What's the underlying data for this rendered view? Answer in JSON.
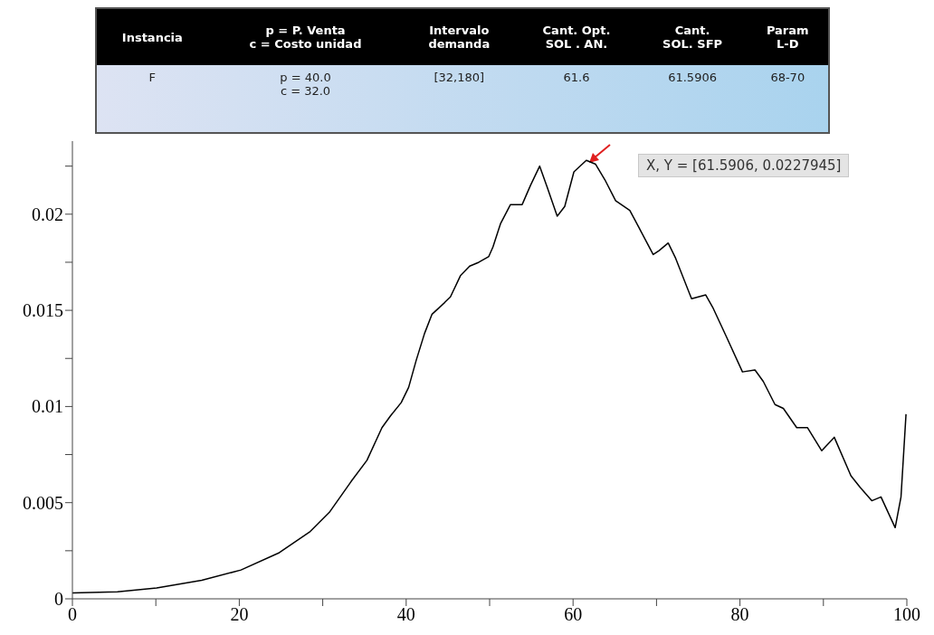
{
  "chart_data": {
    "type": "line",
    "x": [
      0,
      5.4,
      10.1,
      15.5,
      20.2,
      24.8,
      28.5,
      30.8,
      33.4,
      35.3,
      37.1,
      38.1,
      39.4,
      40.3,
      41.2,
      42.2,
      43.1,
      44.6,
      45.3,
      46.5,
      47.6,
      48.7,
      49.9,
      50.4,
      51.3,
      52.5,
      53.9,
      54.9,
      56.0,
      56.9,
      58.1,
      59.0,
      60.1,
      61.59,
      62.7,
      63.8,
      65.1,
      66.8,
      67.9,
      69.6,
      70.3,
      71.4,
      72.3,
      74.2,
      75.9,
      76.8,
      78.3,
      80.3,
      81.8,
      82.8,
      84.2,
      85.2,
      86.8,
      88.1,
      89.8,
      91.3,
      93.3,
      94.4,
      95.8,
      96.9,
      98.6,
      99.3,
      99.9
    ],
    "series": [
      {
        "color": "#000000",
        "values": [
          0.0003,
          0.00037,
          0.00056,
          0.00096,
          0.0015,
          0.0024,
          0.0035,
          0.0045,
          0.0061,
          0.0072,
          0.0089,
          0.0095,
          0.0102,
          0.011,
          0.0124,
          0.0138,
          0.0148,
          0.0154,
          0.0157,
          0.0168,
          0.0173,
          0.0175,
          0.0178,
          0.0183,
          0.0195,
          0.0205,
          0.0205,
          0.0215,
          0.0225,
          0.0214,
          0.0199,
          0.0204,
          0.0222,
          0.0228,
          0.0226,
          0.0218,
          0.0207,
          0.0202,
          0.0193,
          0.0179,
          0.0181,
          0.0185,
          0.0177,
          0.0156,
          0.0158,
          0.0151,
          0.0137,
          0.0118,
          0.0119,
          0.0113,
          0.0101,
          0.0099,
          0.0089,
          0.0089,
          0.0077,
          0.0084,
          0.0064,
          0.0058,
          0.0051,
          0.0053,
          0.0037,
          0.0053,
          0.0096
        ]
      }
    ],
    "xlim": [
      0,
      100
    ],
    "xticks": [
      0,
      {
        "value": 10,
        "label": null
      },
      20,
      {
        "value": 30,
        "label": null
      },
      40,
      {
        "value": 50,
        "label": null
      },
      60,
      {
        "value": 70,
        "label": null
      },
      80,
      {
        "value": 90,
        "label": null
      },
      100
    ],
    "ylim": [
      0,
      0.0238
    ],
    "yticks": [
      0,
      {
        "value": 0.0025,
        "label": null
      },
      0.005,
      {
        "value": 0.0075,
        "label": null
      },
      0.01,
      {
        "value": 0.0125,
        "label": null
      },
      0.015,
      {
        "value": 0.0175,
        "label": null
      },
      0.02,
      {
        "value": 0.0225,
        "label": null
      }
    ],
    "grid": false,
    "legend": false,
    "marker": "none",
    "line_style": "solid",
    "annotations": [
      "Instancia",
      "p = P. Venta\nc = Costo unidad",
      "Intervalo\ndemanda",
      "Cant. Opt.\nSOL . AN.",
      "Cant.\nSOL. SFP",
      "Param\nL-D",
      "F",
      "p = 40.0\nc =  32.0",
      "[32,180]",
      "61.6",
      "61.5906",
      "68-70",
      "X, Y = [61.5906, 0.0227945]"
    ]
  }
}
